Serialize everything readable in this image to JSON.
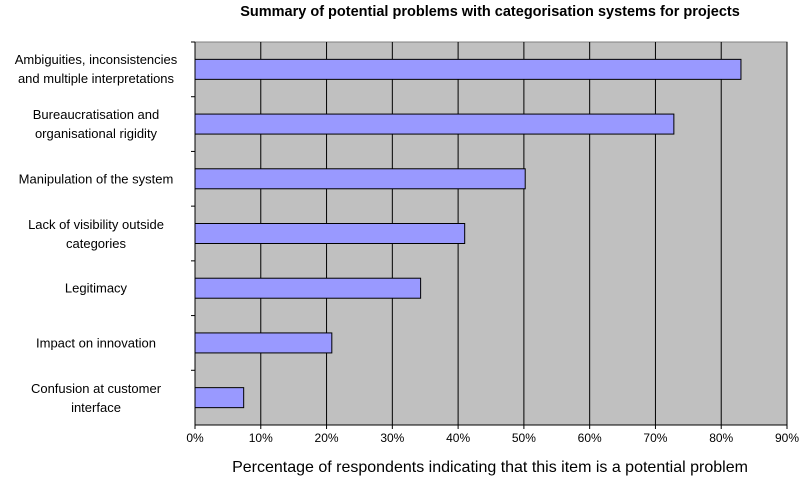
{
  "chart_data": {
    "type": "bar",
    "orientation": "horizontal",
    "title": "Summary of potential problems with categorisation systems for projects",
    "x_label": "Percentage of respondents indicating that this item is a potential problem",
    "categories": [
      "Ambiguities, inconsistencies and multiple interpretations",
      "Bureaucratisation and organisational rigidity",
      "Manipulation of the system",
      "Lack of visibility outside categories",
      "Legitimacy",
      "Impact on innovation",
      "Confusion at customer interface"
    ],
    "values": [
      83,
      72.8,
      50.2,
      41,
      34.3,
      20.8,
      7.4
    ],
    "color": "#9999ff",
    "xlim": [
      0,
      90
    ],
    "xticks": [
      {
        "value": 0,
        "label": "0%"
      },
      {
        "value": 10,
        "label": "10%"
      },
      {
        "value": 20,
        "label": "20%"
      },
      {
        "value": 30,
        "label": "30%"
      },
      {
        "value": 40,
        "label": "40%"
      },
      {
        "value": 50,
        "label": "50%"
      },
      {
        "value": 60,
        "label": "60%"
      },
      {
        "value": 70,
        "label": "70%"
      },
      {
        "value": 80,
        "label": "80%"
      },
      {
        "value": 90,
        "label": "90%"
      }
    ],
    "grid": true
  }
}
